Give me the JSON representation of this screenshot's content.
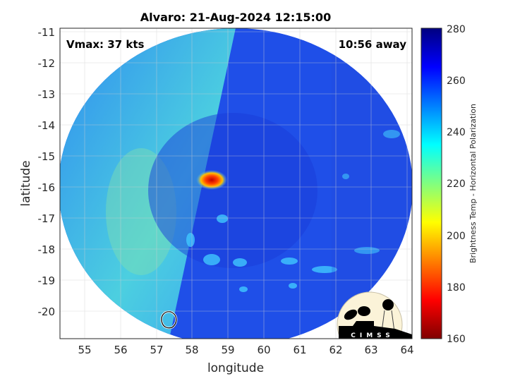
{
  "title": "Alvaro: 21-Aug-2024 12:15:00",
  "annotations": {
    "vmax": "Vmax: 37 kts",
    "time_away": "10:56 away"
  },
  "xlabel": "longitude",
  "ylabel": "latitude",
  "logo_text": "CIMSS",
  "colorbar": {
    "label": "Brightness Temp - Horizontal Polarization",
    "range": [
      160,
      280
    ],
    "ticks": [
      "160",
      "180",
      "200",
      "220",
      "240",
      "260",
      "280"
    ],
    "colormap": "jet"
  },
  "chart_data": {
    "type": "heatmap",
    "title": "Alvaro: 21-Aug-2024 12:15:00",
    "xlabel": "longitude",
    "ylabel": "latitude",
    "xlim": [
      54.3,
      64.15
    ],
    "ylim": [
      -20.9,
      -10.9
    ],
    "xticks": [
      "55",
      "56",
      "57",
      "58",
      "59",
      "60",
      "61",
      "62",
      "63",
      "64"
    ],
    "yticks": [
      "-11",
      "-12",
      "-13",
      "-14",
      "-15",
      "-16",
      "-17",
      "-18",
      "-19",
      "-20"
    ],
    "grid": true,
    "features": {
      "background_brightness_temp": 260,
      "west_swath_brightness_temp": 240,
      "min_brightness_temp_location": {
        "lon": 58.8,
        "lat": -15.85,
        "value": 175
      },
      "storm_center_marker": {
        "lon": 57.6,
        "lat": -20.25
      }
    }
  }
}
